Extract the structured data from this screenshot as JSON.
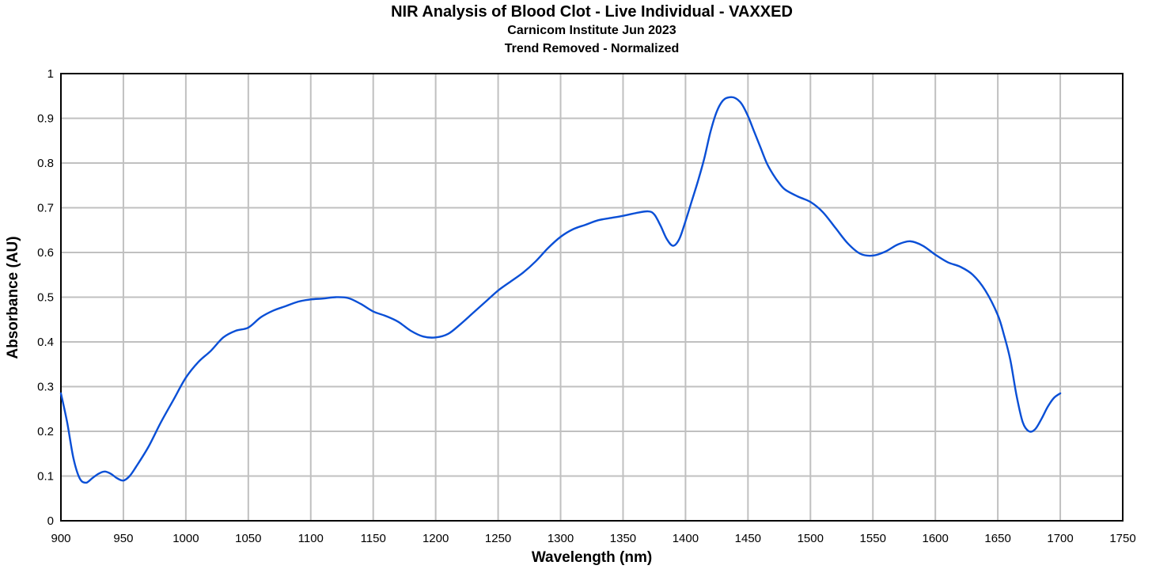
{
  "chart_data": {
    "type": "line",
    "title": "NIR Analysis of Blood Clot - Live Individual - VAXXED",
    "subtitle_lines": [
      "Carnicom Institute Jun 2023",
      "Trend Removed - Normalized"
    ],
    "xlabel": "Wavelength (nm)",
    "ylabel": "Absorbance (AU)",
    "xlim": [
      900,
      1750
    ],
    "ylim": [
      0,
      1
    ],
    "x_ticks": [
      900,
      950,
      1000,
      1050,
      1100,
      1150,
      1200,
      1250,
      1300,
      1350,
      1400,
      1450,
      1500,
      1550,
      1600,
      1650,
      1700,
      1750
    ],
    "y_ticks": [
      0,
      0.1,
      0.2,
      0.3,
      0.4,
      0.5,
      0.6,
      0.7,
      0.8,
      0.9,
      1
    ],
    "grid": true,
    "legend": "none",
    "line_color": "#0a4fd6",
    "grid_color": "#c0c0c0",
    "series": [
      {
        "x": [
          900,
          905,
          910,
          915,
          920,
          925,
          930,
          935,
          940,
          945,
          950,
          955,
          960,
          970,
          980,
          990,
          1000,
          1010,
          1020,
          1030,
          1040,
          1050,
          1060,
          1070,
          1080,
          1090,
          1100,
          1110,
          1120,
          1130,
          1140,
          1150,
          1160,
          1170,
          1180,
          1190,
          1200,
          1210,
          1220,
          1230,
          1240,
          1250,
          1260,
          1270,
          1280,
          1290,
          1300,
          1310,
          1320,
          1330,
          1340,
          1350,
          1360,
          1370,
          1375,
          1380,
          1385,
          1390,
          1395,
          1400,
          1405,
          1410,
          1415,
          1420,
          1425,
          1430,
          1435,
          1440,
          1445,
          1450,
          1455,
          1460,
          1465,
          1470,
          1475,
          1480,
          1490,
          1500,
          1510,
          1520,
          1530,
          1540,
          1550,
          1560,
          1570,
          1580,
          1590,
          1600,
          1610,
          1620,
          1630,
          1640,
          1650,
          1655,
          1660,
          1665,
          1670,
          1675,
          1680,
          1685,
          1690,
          1695,
          1700
        ],
        "y": [
          0.285,
          0.22,
          0.14,
          0.095,
          0.085,
          0.095,
          0.105,
          0.11,
          0.105,
          0.095,
          0.09,
          0.1,
          0.12,
          0.165,
          0.22,
          0.27,
          0.32,
          0.355,
          0.38,
          0.41,
          0.425,
          0.432,
          0.455,
          0.47,
          0.48,
          0.49,
          0.495,
          0.497,
          0.5,
          0.498,
          0.485,
          0.468,
          0.458,
          0.445,
          0.425,
          0.412,
          0.41,
          0.418,
          0.44,
          0.465,
          0.49,
          0.515,
          0.535,
          0.555,
          0.58,
          0.61,
          0.635,
          0.652,
          0.662,
          0.672,
          0.677,
          0.682,
          0.688,
          0.692,
          0.685,
          0.66,
          0.63,
          0.615,
          0.63,
          0.67,
          0.715,
          0.76,
          0.81,
          0.87,
          0.915,
          0.94,
          0.947,
          0.945,
          0.932,
          0.905,
          0.87,
          0.835,
          0.8,
          0.775,
          0.755,
          0.74,
          0.725,
          0.713,
          0.69,
          0.655,
          0.62,
          0.597,
          0.593,
          0.602,
          0.618,
          0.625,
          0.615,
          0.595,
          0.578,
          0.568,
          0.55,
          0.515,
          0.46,
          0.415,
          0.36,
          0.28,
          0.22,
          0.2,
          0.205,
          0.228,
          0.255,
          0.275,
          0.285
        ]
      }
    ]
  }
}
